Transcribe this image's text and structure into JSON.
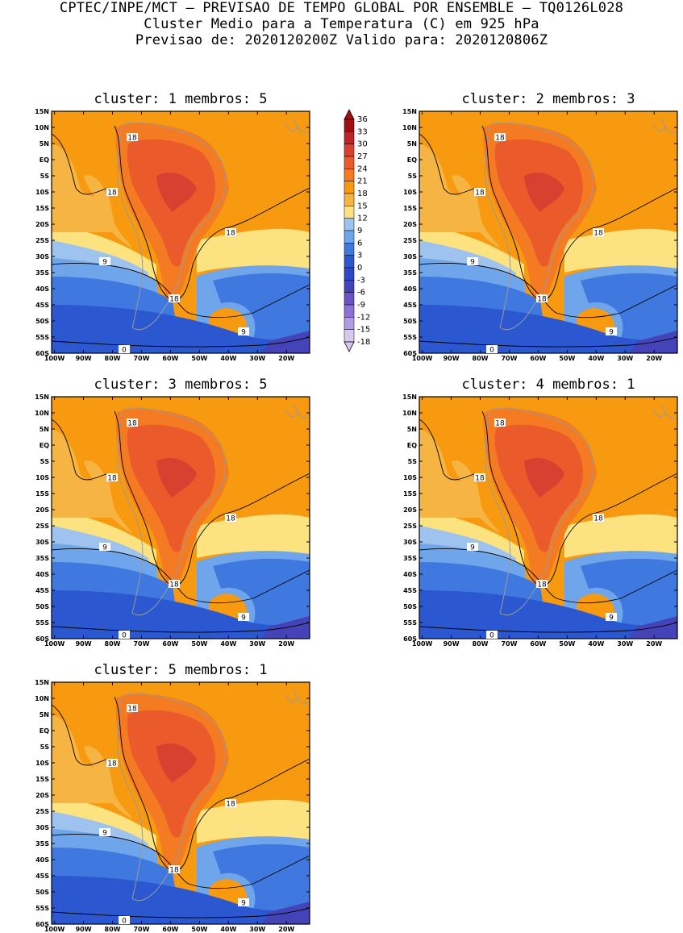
{
  "title": {
    "line1": "CPTEC/INPE/MCT – PREVISAO DE TEMPO GLOBAL POR ENSEMBLE – TQ0126L028",
    "line2": "Cluster Medio para a Temperatura (C) em 925 hPa",
    "line3": "Previsao de: 2020120200Z    Valido para: 2020120806Z"
  },
  "panels": [
    {
      "title": "cluster: 1   membros: 5"
    },
    {
      "title": "cluster: 2   membros: 3"
    },
    {
      "title": "cluster: 3   membros: 5"
    },
    {
      "title": "cluster: 4   membros: 1"
    },
    {
      "title": "cluster: 5   membros: 1"
    }
  ],
  "map": {
    "lat_labels": [
      "15N",
      "10N",
      "5N",
      "EQ",
      "5S",
      "10S",
      "15S",
      "20S",
      "25S",
      "30S",
      "35S",
      "40S",
      "45S",
      "50S",
      "55S",
      "60S"
    ],
    "lon_labels": [
      "100W",
      "90W",
      "80W",
      "70W",
      "60W",
      "50W",
      "40W",
      "30W",
      "20W"
    ],
    "lat_range": [
      -60,
      15
    ],
    "lon_range": [
      -101,
      -12
    ],
    "contour_labels": [
      "18",
      "18",
      "18",
      "9",
      "18",
      "9",
      "0"
    ]
  },
  "colorbar": {
    "labels": [
      "36",
      "33",
      "30",
      "27",
      "24",
      "21",
      "18",
      "15",
      "12",
      "9",
      "6",
      "3",
      "0",
      "-3",
      "-6",
      "-9",
      "-12",
      "-15",
      "-18"
    ],
    "colors": [
      "#a01010",
      "#c0222a",
      "#d84030",
      "#ea5a2a",
      "#f47b22",
      "#f79a10",
      "#f6b443",
      "#fde280",
      "#9ec3ee",
      "#6fa5ea",
      "#3f79e0",
      "#2b58d0",
      "#2c48c6",
      "#4444b8",
      "#6a52c8",
      "#8d72d6",
      "#b39ce4",
      "#d6c8ef"
    ],
    "min": -18,
    "max": 36
  },
  "colors": {
    "land_outline": "#9a9a9a",
    "contour": "#000000"
  }
}
